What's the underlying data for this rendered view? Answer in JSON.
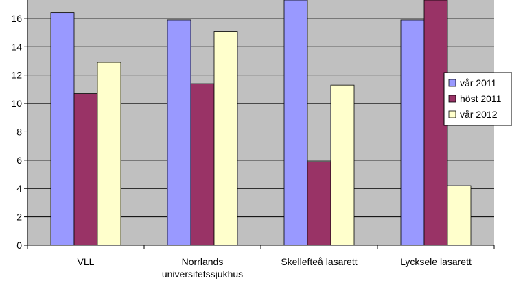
{
  "chart_data": {
    "type": "bar",
    "categories": [
      [
        "VLL"
      ],
      [
        "Norrlands",
        "universitetssjukhus"
      ],
      [
        "Skellefteå lasarett"
      ],
      [
        "Lycksele lasarett"
      ]
    ],
    "series": [
      {
        "name": "vår 2011",
        "color": "#9999ff",
        "values": [
          16.4,
          15.9,
          17.5,
          15.9
        ]
      },
      {
        "name": "höst 2011",
        "color": "#993366",
        "values": [
          10.7,
          11.4,
          5.9,
          17.5
        ]
      },
      {
        "name": "vår 2012",
        "color": "#ffffcc",
        "values": [
          12.9,
          15.1,
          11.3,
          4.2
        ]
      }
    ],
    "yticks": [
      0,
      2,
      4,
      6,
      8,
      10,
      12,
      14,
      16
    ],
    "ylim": [
      0,
      17.3
    ],
    "plot_background": "#c0c0c0",
    "grid": true,
    "legend_position": "right"
  }
}
